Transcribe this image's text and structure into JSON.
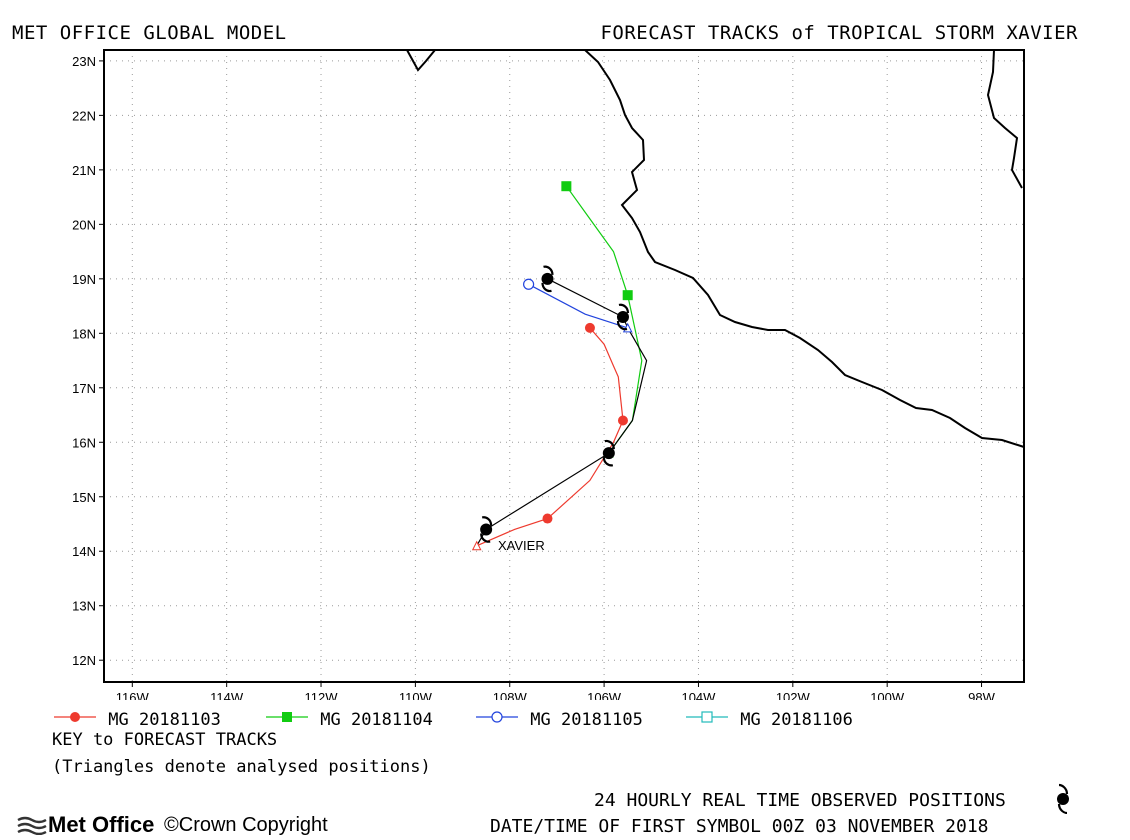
{
  "header": {
    "left_title": "MET OFFICE GLOBAL MODEL",
    "right_title": "FORECAST TRACKS of TROPICAL STORM XAVIER"
  },
  "map": {
    "lon_labels": [
      "116W",
      "114W",
      "112W",
      "110W",
      "108W",
      "106W",
      "104W",
      "102W",
      "100W",
      "98W"
    ],
    "lat_labels": [
      "23N",
      "22N",
      "21N",
      "20N",
      "19N",
      "18N",
      "17N",
      "16N",
      "15N",
      "14N",
      "13N",
      "12N"
    ],
    "storm_label": "XAVIER",
    "colors": {
      "run1": "#ee3a2e",
      "run2": "#11cc11",
      "run3": "#2244dd",
      "run4": "#22bbbb",
      "observed": "#000000"
    }
  },
  "chart_data": {
    "type": "line",
    "title": "FORECAST TRACKS of TROPICAL STORM XAVIER",
    "xlim": [
      -116.6,
      -97.1
    ],
    "ylim": [
      11.6,
      23.2
    ],
    "x_unit": "degrees longitude (negative = W)",
    "y_unit": "degrees latitude (N)",
    "series": [
      {
        "name": "MG 20181103",
        "color": "#ee3a2e",
        "marker": "filled-circle",
        "points": [
          [
            -108.7,
            14.1
          ],
          [
            -107.9,
            14.4
          ],
          [
            -107.2,
            14.6
          ],
          [
            -106.3,
            15.3
          ],
          [
            -105.8,
            16.0
          ],
          [
            -105.6,
            16.4
          ],
          [
            -105.7,
            17.2
          ],
          [
            -105.8,
            17.4
          ],
          [
            -106.0,
            17.8
          ],
          [
            -106.3,
            18.1
          ]
        ],
        "markers": [
          [
            -107.2,
            14.6
          ],
          [
            -105.6,
            16.4
          ],
          [
            -106.3,
            18.1
          ]
        ]
      },
      {
        "name": "MG 20181104",
        "color": "#11cc11",
        "marker": "filled-square",
        "points": [
          [
            -105.9,
            15.8
          ],
          [
            -105.4,
            16.4
          ],
          [
            -105.2,
            17.5
          ],
          [
            -105.5,
            18.7
          ],
          [
            -105.8,
            19.5
          ],
          [
            -106.3,
            20.1
          ],
          [
            -106.8,
            20.7
          ]
        ],
        "markers": [
          [
            -105.5,
            18.7
          ],
          [
            -106.8,
            20.7
          ]
        ]
      },
      {
        "name": "MG 20181105",
        "color": "#2244dd",
        "marker": "open-circle",
        "points": [
          [
            -105.5,
            18.1
          ],
          [
            -106.4,
            18.35
          ],
          [
            -107.6,
            18.9
          ]
        ],
        "markers": [
          [
            -107.6,
            18.9
          ]
        ]
      },
      {
        "name": "MG 20181106",
        "color": "#22bbbb",
        "marker": "open-square",
        "points": [],
        "markers": []
      },
      {
        "name": "24 HOURLY REAL TIME OBSERVED POSITIONS",
        "color": "#000000",
        "marker": "hurricane-symbol",
        "points": [
          [
            -108.7,
            14.1
          ],
          [
            -108.5,
            14.4
          ],
          [
            -105.9,
            15.8
          ],
          [
            -105.4,
            16.4
          ],
          [
            -105.1,
            17.5
          ],
          [
            -105.5,
            18.1
          ],
          [
            -105.6,
            18.3
          ],
          [
            -107.2,
            19.0
          ]
        ],
        "markers": [
          [
            -108.5,
            14.4
          ],
          [
            -105.9,
            15.8
          ],
          [
            -105.6,
            18.3
          ],
          [
            -107.2,
            19.0
          ]
        ]
      }
    ]
  },
  "legend": {
    "items": [
      {
        "label": "MG 20181103"
      },
      {
        "label": "MG 20181104"
      },
      {
        "label": "MG 20181105"
      },
      {
        "label": "MG 20181106"
      }
    ]
  },
  "key": {
    "line1": "KEY to FORECAST TRACKS",
    "line2": "(Triangles denote analysed positions)"
  },
  "footer": {
    "observed_label": "24 HOURLY REAL TIME OBSERVED POSITIONS",
    "datetime_label": "DATE/TIME OF FIRST SYMBOL 00Z 03 NOVEMBER 2018",
    "logo_text": "Met Office",
    "copyright": "Crown Copyright"
  }
}
